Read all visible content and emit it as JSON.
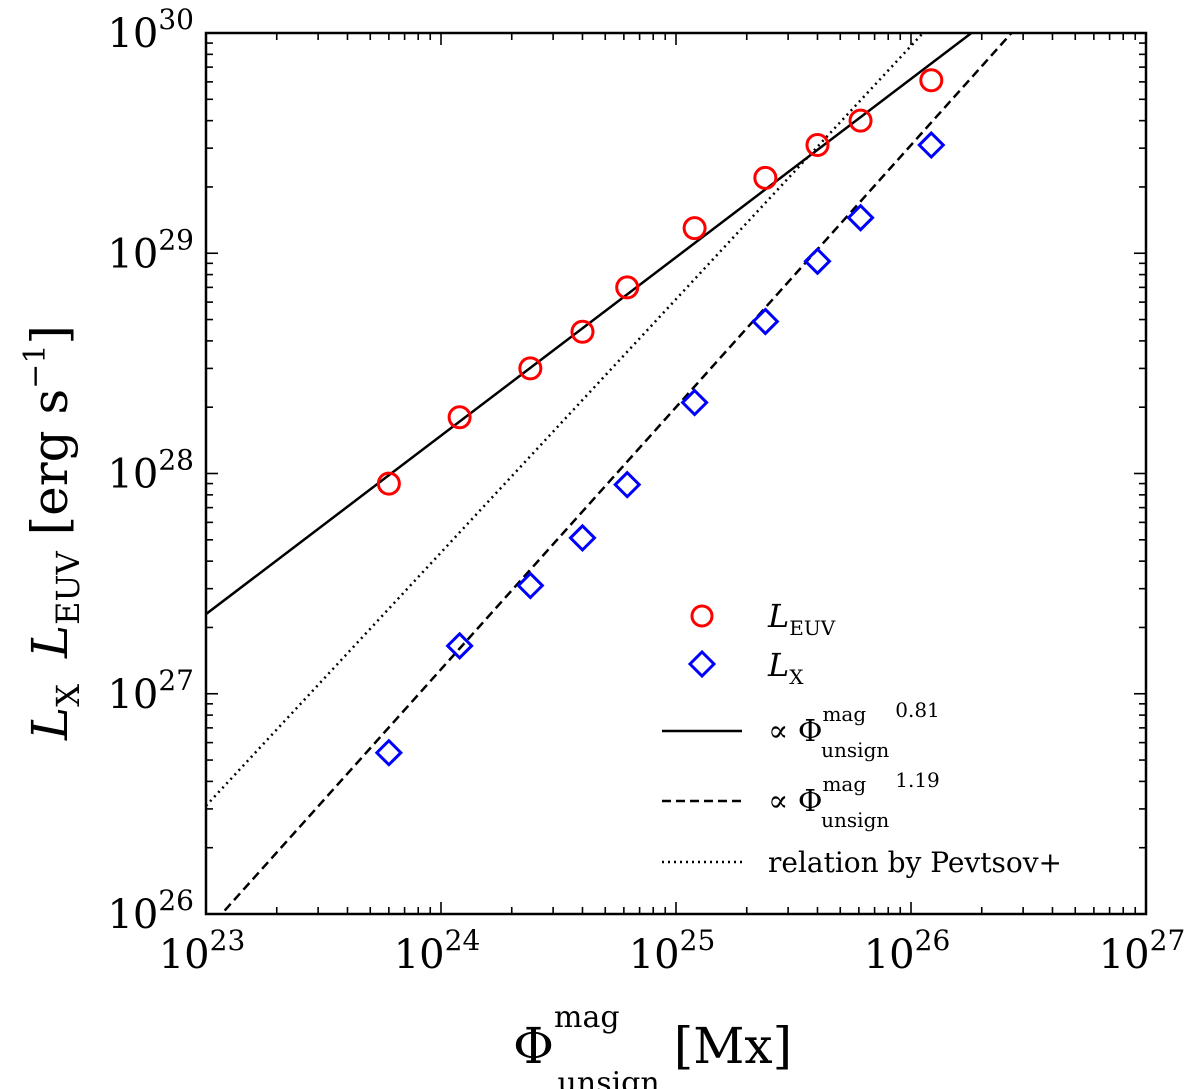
{
  "chart_data": {
    "type": "scatter",
    "x_scale": "log",
    "y_scale": "log",
    "xlim": [
      1e+23,
      1e+27
    ],
    "ylim": [
      1e+26,
      1e+30
    ],
    "xlabel": {
      "base": "Φ",
      "sup": "mag",
      "sub": "unsign",
      "unit": "[Mx]"
    },
    "ylabel": {
      "l1": "L",
      "l1_sub": "X",
      "l2": "L",
      "l2_sub": "EUV",
      "unit_open": "[erg s",
      "unit_exp": "−1",
      "unit_close": "]"
    },
    "x_ticks": [
      {
        "base": "10",
        "exp": "23",
        "value": 1e+23
      },
      {
        "base": "10",
        "exp": "24",
        "value": 1e+24
      },
      {
        "base": "10",
        "exp": "25",
        "value": 1e+25
      },
      {
        "base": "10",
        "exp": "26",
        "value": 1e+26
      },
      {
        "base": "10",
        "exp": "27",
        "value": 1e+27
      }
    ],
    "y_ticks": [
      {
        "base": "10",
        "exp": "26",
        "value": 1e+26
      },
      {
        "base": "10",
        "exp": "27",
        "value": 1e+27
      },
      {
        "base": "10",
        "exp": "28",
        "value": 1e+28
      },
      {
        "base": "10",
        "exp": "29",
        "value": 1e+29
      },
      {
        "base": "10",
        "exp": "30",
        "value": 1e+30
      }
    ],
    "series": [
      {
        "name": "L_EUV",
        "marker": "circle",
        "color": "#ff0000",
        "points": [
          [
            6e+23,
            9e+27
          ],
          [
            1.2e+24,
            1.8e+28
          ],
          [
            2.4e+24,
            3e+28
          ],
          [
            4e+24,
            4.4e+28
          ],
          [
            6.2e+24,
            7e+28
          ],
          [
            1.2e+25,
            1.3e+29
          ],
          [
            2.4e+25,
            2.2e+29
          ],
          [
            4e+25,
            3.1e+29
          ],
          [
            6.1e+25,
            4e+29
          ],
          [
            1.22e+26,
            6.1e+29
          ]
        ]
      },
      {
        "name": "L_X",
        "marker": "diamond",
        "color": "#0000ff",
        "points": [
          [
            6e+23,
            5.4e+26
          ],
          [
            1.2e+24,
            1.65e+27
          ],
          [
            2.4e+24,
            3.1e+27
          ],
          [
            4e+24,
            5.1e+27
          ],
          [
            6.2e+24,
            8.9e+27
          ],
          [
            1.2e+25,
            2.1e+28
          ],
          [
            2.4e+25,
            4.9e+28
          ],
          [
            4e+25,
            9.2e+28
          ],
          [
            6.1e+25,
            1.45e+29
          ],
          [
            1.22e+26,
            3.1e+29
          ]
        ]
      }
    ],
    "fits": [
      {
        "name": "∝ Φ^mag_unsign^0.81",
        "style": "solid",
        "color": "#000000",
        "exponent": 0.81,
        "anchor": [
          1e+23,
          2.3e+27
        ]
      },
      {
        "name": "∝ Φ^mag_unsign^1.19",
        "style": "dashed",
        "color": "#000000",
        "exponent": 1.19,
        "anchor": [
          1e+25,
          2e+28
        ]
      },
      {
        "name": "relation by Pevtsov+",
        "style": "dotted",
        "color": "#000000",
        "exponent": 1.15,
        "anchor": [
          1e+23,
          3.1e+26
        ]
      }
    ],
    "legend": {
      "placement": "lower-right",
      "entries": [
        {
          "kind": "marker-circle",
          "color": "#ff0000",
          "label": "L",
          "sub": "EUV"
        },
        {
          "kind": "marker-diamond",
          "color": "#0000ff",
          "label": "L",
          "sub": "X"
        },
        {
          "kind": "line-solid",
          "color": "#000000",
          "label": "∝ Φ",
          "sup": "mag",
          "sub": "unsign",
          "power": "0.81"
        },
        {
          "kind": "line-dashed",
          "color": "#000000",
          "label": "∝ Φ",
          "sup": "mag",
          "sub": "unsign",
          "power": "1.19"
        },
        {
          "kind": "line-dotted",
          "color": "#000000",
          "label": "relation by Pevtsov+"
        }
      ]
    }
  }
}
